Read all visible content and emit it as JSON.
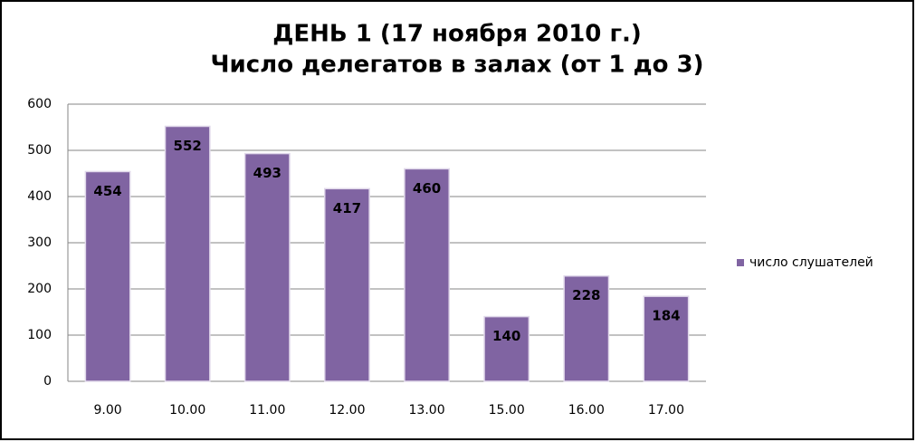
{
  "chart_data": {
    "type": "bar",
    "title": [
      "ДЕНЬ 1 (17 ноября 2010 г.)",
      "Число делегатов в залах (от 1 до 3)"
    ],
    "categories": [
      "9.00",
      "10.00",
      "11.00",
      "12.00",
      "13.00",
      "15.00",
      "16.00",
      "17.00"
    ],
    "series": [
      {
        "name": "число слушателей",
        "color": "#8064a2",
        "values": [
          454,
          552,
          493,
          417,
          460,
          140,
          228,
          184
        ]
      }
    ],
    "ylim": [
      0,
      600
    ],
    "yticks": [
      0,
      100,
      200,
      300,
      400,
      500,
      600
    ],
    "grid": true,
    "legend": "right",
    "data_labels": true
  }
}
